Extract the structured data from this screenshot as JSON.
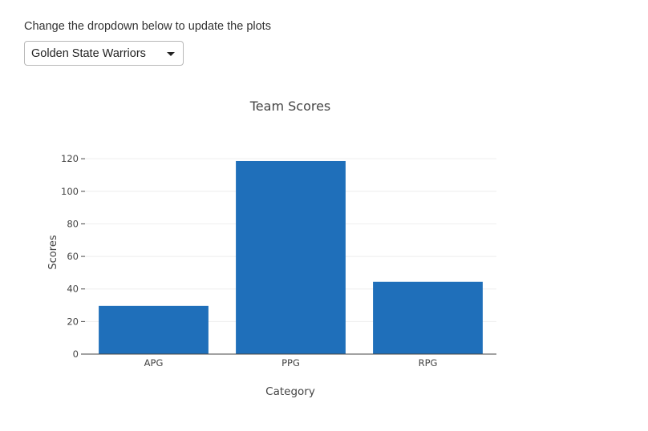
{
  "instruction": "Change the dropdown below to update the plots",
  "dropdown": {
    "selected": "Golden State Warriors"
  },
  "colors": {
    "bar": "#1f6fba",
    "grid": "#eeeeee",
    "axis": "#444444"
  },
  "chart_data": {
    "type": "bar",
    "title": "Team Scores",
    "xlabel": "Category",
    "ylabel": "Scores",
    "categories": [
      "APG",
      "PPG",
      "RPG"
    ],
    "values": [
      29.6,
      118.6,
      44.4
    ],
    "ylim": [
      0,
      124
    ],
    "yticks": [
      0,
      20,
      40,
      60,
      80,
      100,
      120
    ],
    "grid": true,
    "legend": "none"
  }
}
